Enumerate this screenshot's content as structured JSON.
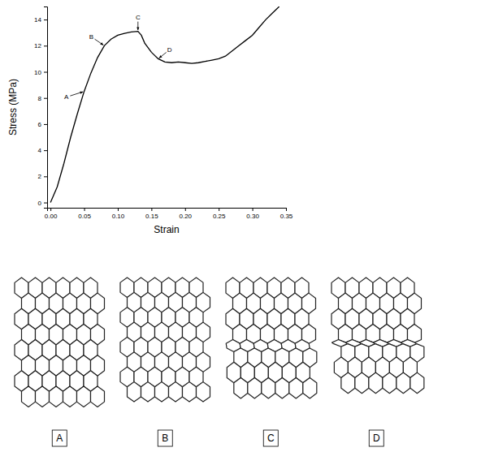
{
  "chart_data": {
    "type": "line",
    "x_label": "Strain",
    "y_label": "Stress (MPa)",
    "x": [
      0,
      0.01,
      0.02,
      0.03,
      0.04,
      0.05,
      0.06,
      0.07,
      0.08,
      0.09,
      0.1,
      0.11,
      0.12,
      0.13,
      0.135,
      0.14,
      0.15,
      0.16,
      0.17,
      0.18,
      0.19,
      0.2,
      0.21,
      0.22,
      0.23,
      0.24,
      0.25,
      0.26,
      0.27,
      0.28,
      0.29,
      0.3,
      0.31,
      0.32,
      0.33,
      0.34
    ],
    "values": [
      0,
      1.2,
      3.0,
      5.0,
      6.8,
      8.5,
      9.9,
      11.1,
      12.0,
      12.5,
      12.8,
      12.95,
      13.05,
      13.1,
      12.8,
      12.2,
      11.5,
      11.0,
      10.75,
      10.7,
      10.75,
      10.7,
      10.65,
      10.7,
      10.8,
      10.9,
      11.0,
      11.2,
      11.6,
      12.0,
      12.4,
      12.8,
      13.4,
      14.0,
      14.5,
      15.0
    ],
    "color": "#000000",
    "xlim": [
      -0.005,
      0.35
    ],
    "ylim": [
      -0.4,
      15
    ],
    "xticks": [
      {
        "value": 0,
        "label": "0.00"
      },
      0.05,
      {
        "value": 0.1,
        "label": "0.10"
      },
      0.15,
      {
        "value": 0.2,
        "label": "0.20"
      },
      0.25,
      {
        "value": 0.3,
        "label": "0.30"
      },
      0.35
    ],
    "yticks": [
      0,
      2,
      4,
      6,
      8,
      10,
      12,
      14
    ],
    "annotations": [
      {
        "text": "A",
        "x": 0.05,
        "y": 8.5
      },
      {
        "text": "B",
        "x": 0.08,
        "y": 12.0
      },
      {
        "text": "C",
        "x": 0.13,
        "y": 13.1
      },
      {
        "text": "D",
        "x": 0.16,
        "y": 11.0
      }
    ]
  },
  "diagrams": {
    "labels": [
      "A",
      "B",
      "C",
      "D"
    ]
  }
}
